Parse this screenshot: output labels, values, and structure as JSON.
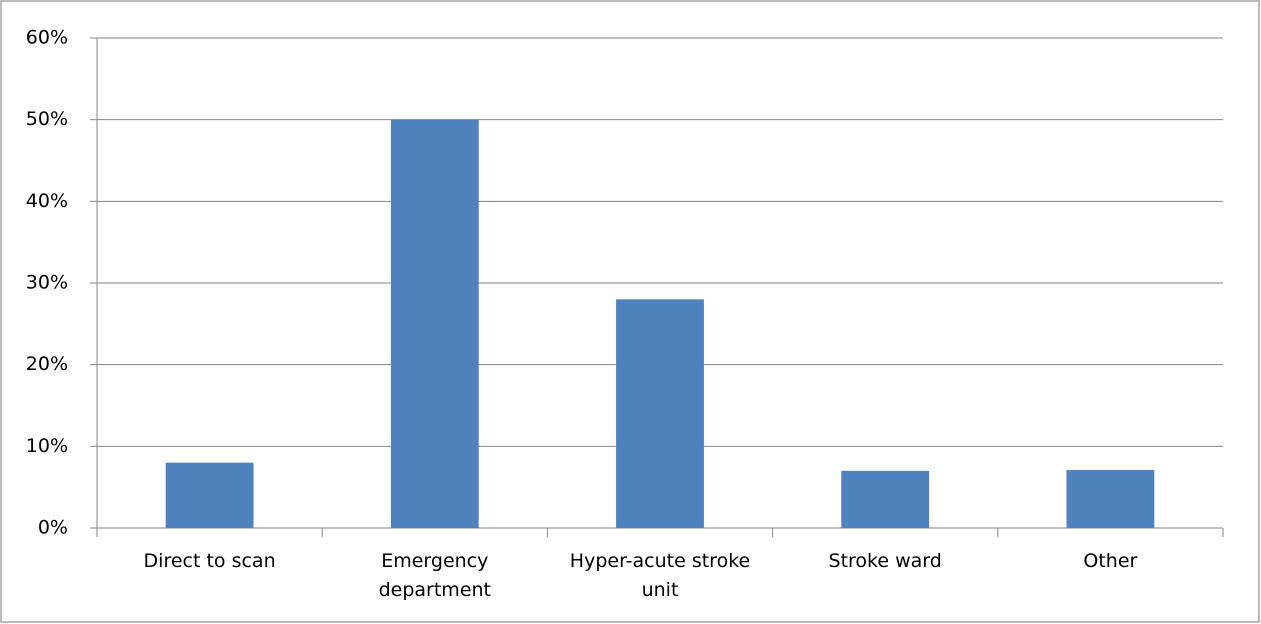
{
  "chart_data": {
    "type": "bar",
    "categories": [
      "Direct to scan",
      "Emergency department",
      "Hyper-acute stroke unit",
      "Stroke ward",
      "Other"
    ],
    "values": [
      8,
      50,
      28,
      7,
      7.1
    ],
    "color": "#4f81bd",
    "ylim": [
      0,
      60
    ],
    "yticks": [
      {
        "value": 0,
        "label": "0%"
      },
      {
        "value": 10,
        "label": "10%"
      },
      {
        "value": 20,
        "label": "20%"
      },
      {
        "value": 30,
        "label": "30%"
      },
      {
        "value": 40,
        "label": "40%"
      },
      {
        "value": 50,
        "label": "50%"
      },
      {
        "value": 60,
        "label": "60%"
      }
    ],
    "grid": true
  }
}
